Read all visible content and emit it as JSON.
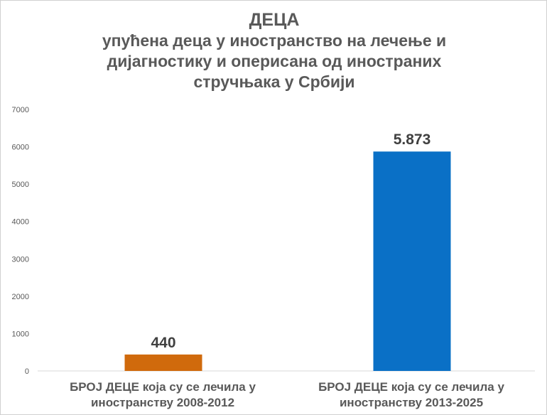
{
  "chart_data": {
    "type": "bar",
    "title": "ДЕЦА",
    "subtitle": "упућена деца у иностранство на лечење и дијагностику и оперисана од иностраних стручњака у Србији",
    "categories": [
      "БРОЈ ДЕЦЕ која су се лечила у иностранству 2008-2012",
      "БРОЈ ДЕЦЕ која су се лечила у иностранству 2013-2025"
    ],
    "values": [
      440,
      5873
    ],
    "data_labels": [
      "440",
      "5.873"
    ],
    "colors": [
      "#d06a0c",
      "#0a70c6"
    ],
    "ylim": [
      0,
      7000
    ],
    "yticks": [
      "0",
      "1000",
      "2000",
      "3000",
      "4000",
      "5000",
      "6000",
      "7000"
    ],
    "grid": false,
    "xlabel": "",
    "ylabel": ""
  }
}
